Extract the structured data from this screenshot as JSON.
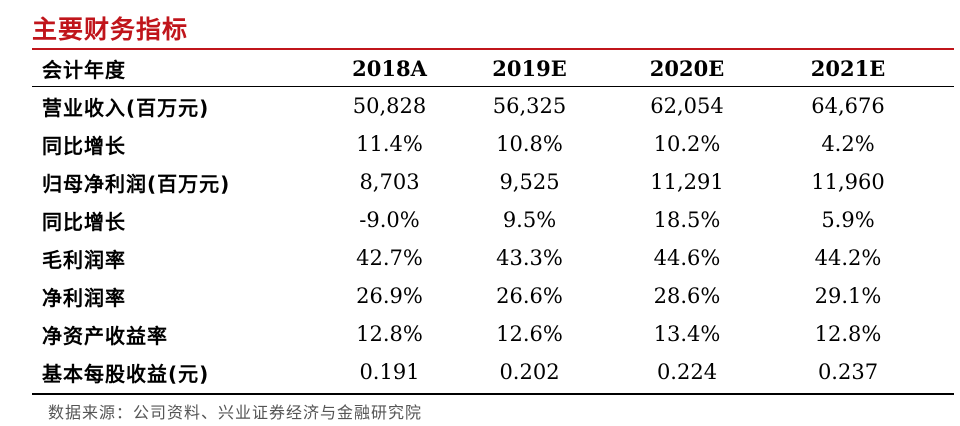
{
  "title": "主要财务指标",
  "table": {
    "header": {
      "label": "会计年度",
      "years": [
        "2018A",
        "2019E",
        "2020E",
        "2021E"
      ]
    },
    "rows": [
      {
        "label": "营业收入(百万元)",
        "values": [
          "50,828",
          "56,325",
          "62,054",
          "64,676"
        ]
      },
      {
        "label": "同比增长",
        "values": [
          "11.4%",
          "10.8%",
          "10.2%",
          "4.2%"
        ]
      },
      {
        "label": "归母净利润(百万元)",
        "values": [
          "8,703",
          "9,525",
          "11,291",
          "11,960"
        ]
      },
      {
        "label": "同比增长",
        "values": [
          "-9.0%",
          "9.5%",
          "18.5%",
          "5.9%"
        ]
      },
      {
        "label": "毛利润率",
        "values": [
          "42.7%",
          "43.3%",
          "44.6%",
          "44.2%"
        ]
      },
      {
        "label": "净利润率",
        "values": [
          "26.9%",
          "26.6%",
          "28.6%",
          "29.1%"
        ]
      },
      {
        "label": "净资产收益率",
        "values": [
          "12.8%",
          "12.6%",
          "13.4%",
          "12.8%"
        ]
      },
      {
        "label": "基本每股收益(元)",
        "values": [
          "0.191",
          "0.202",
          "0.224",
          "0.237"
        ]
      }
    ]
  },
  "source": "数据来源：公司资料、兴业证券经济与金融研究院",
  "colors": {
    "accent": "#c0151b",
    "text": "#000000",
    "muted": "#555555"
  }
}
